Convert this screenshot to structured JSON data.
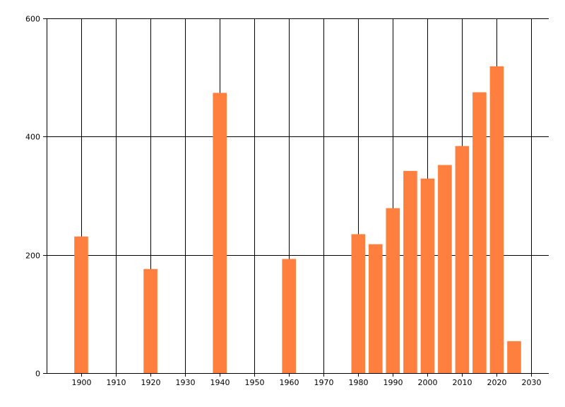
{
  "chart_data": {
    "type": "bar",
    "title": "",
    "xlabel": "",
    "ylabel": "",
    "x": [
      1900,
      1920,
      1940,
      1960,
      1980,
      1985,
      1990,
      1995,
      2000,
      2005,
      2010,
      2015,
      2020,
      2025
    ],
    "values": [
      231,
      176,
      474,
      193,
      235,
      218,
      279,
      342,
      329,
      352,
      384,
      475,
      519,
      54
    ],
    "xlim": [
      1890,
      2035
    ],
    "ylim": [
      0,
      600
    ],
    "x_ticks": [
      1900,
      1910,
      1920,
      1930,
      1940,
      1950,
      1960,
      1970,
      1980,
      1990,
      2000,
      2010,
      2020,
      2030
    ],
    "y_ticks": [
      0,
      200,
      400,
      600
    ],
    "x_tick_labels": [
      "1900",
      "1910",
      "1920",
      "1930",
      "1940",
      "1950",
      "1960",
      "1970",
      "1980",
      "1990",
      "2000",
      "2010",
      "2020",
      "2030"
    ],
    "y_tick_labels": [
      "0",
      "200",
      "400",
      "600"
    ],
    "grid": true,
    "legend": "none",
    "bar_color": "#FF7F3F",
    "bar_width_years": 4
  }
}
